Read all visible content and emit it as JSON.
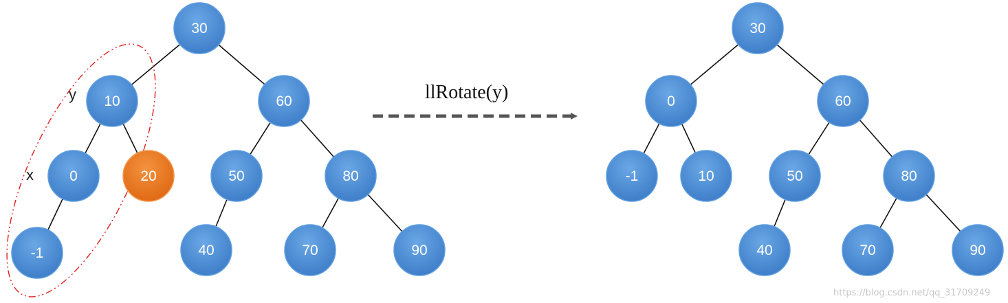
{
  "operation_label": "llRotate(y)",
  "node_label_y": "y",
  "node_label_x": "x",
  "watermark": "https://blog.csdn.net/qq_31709249",
  "colors": {
    "node_fill": "#4f8fd6",
    "node_fill_light": "#6aa7e6",
    "node_stroke": "#5f9ee0",
    "highlight_fill": "#ee7a26",
    "highlight_stroke": "#f59a52",
    "edge": "#111111",
    "arrow": "#555555",
    "ellipse": "#e02020"
  },
  "before_tree": {
    "nodes": [
      {
        "id": "b30",
        "value": "30"
      },
      {
        "id": "b10",
        "value": "10"
      },
      {
        "id": "b60",
        "value": "60"
      },
      {
        "id": "b0",
        "value": "0"
      },
      {
        "id": "b20",
        "value": "20",
        "highlight": true
      },
      {
        "id": "b50",
        "value": "50"
      },
      {
        "id": "b80",
        "value": "80"
      },
      {
        "id": "bm1",
        "value": "-1"
      },
      {
        "id": "b40",
        "value": "40"
      },
      {
        "id": "b70",
        "value": "70"
      },
      {
        "id": "b90",
        "value": "90"
      }
    ],
    "edges": [
      [
        "b30",
        "b10"
      ],
      [
        "b30",
        "b60"
      ],
      [
        "b10",
        "b0"
      ],
      [
        "b10",
        "b20"
      ],
      [
        "b0",
        "bm1"
      ],
      [
        "b60",
        "b50"
      ],
      [
        "b60",
        "b80"
      ],
      [
        "b50",
        "b40"
      ],
      [
        "b80",
        "b70"
      ],
      [
        "b80",
        "b90"
      ]
    ]
  },
  "after_tree": {
    "nodes": [
      {
        "id": "a30",
        "value": "30"
      },
      {
        "id": "a0",
        "value": "0"
      },
      {
        "id": "a60",
        "value": "60"
      },
      {
        "id": "am1",
        "value": "-1"
      },
      {
        "id": "a10",
        "value": "10"
      },
      {
        "id": "a50",
        "value": "50"
      },
      {
        "id": "a80",
        "value": "80"
      },
      {
        "id": "a40",
        "value": "40"
      },
      {
        "id": "a70",
        "value": "70"
      },
      {
        "id": "a90",
        "value": "90"
      }
    ],
    "edges": [
      [
        "a30",
        "a0"
      ],
      [
        "a30",
        "a60"
      ],
      [
        "a0",
        "am1"
      ],
      [
        "a0",
        "a10"
      ],
      [
        "a60",
        "a50"
      ],
      [
        "a60",
        "a80"
      ],
      [
        "a50",
        "a40"
      ],
      [
        "a80",
        "a70"
      ],
      [
        "a80",
        "a90"
      ]
    ]
  }
}
